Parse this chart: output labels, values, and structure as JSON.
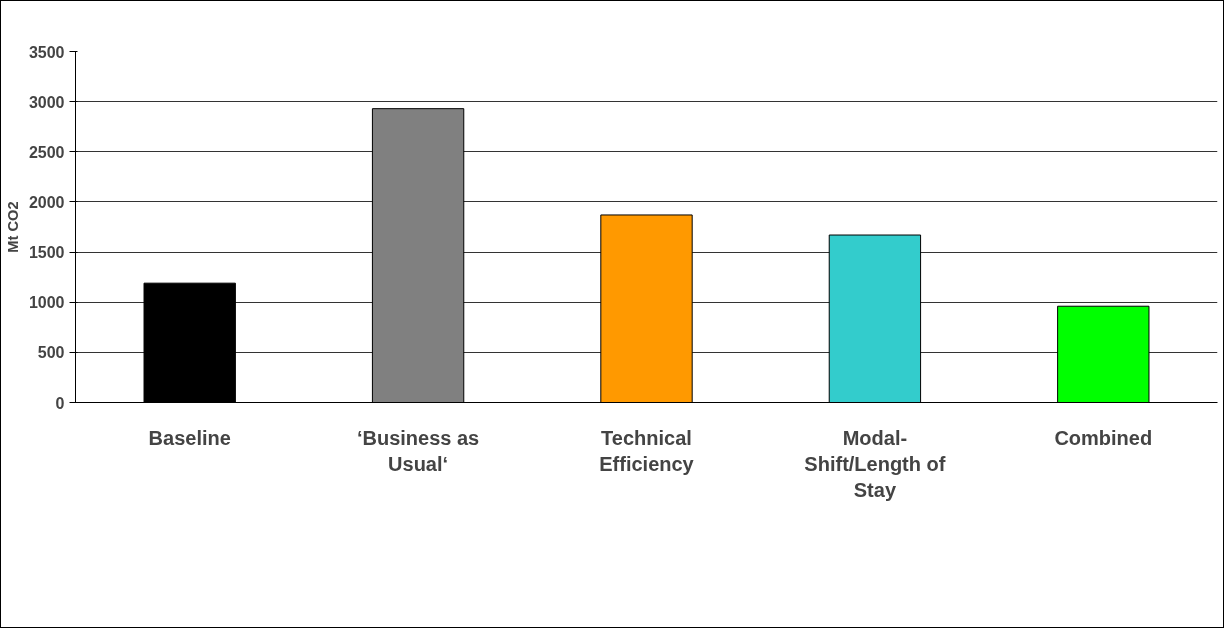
{
  "chart_data": {
    "type": "bar",
    "ylabel": "Mt CO2",
    "categories": [
      "Baseline",
      "‘Business as Usual‘",
      "Technical Efficiency",
      "Modal-Shift/Length of Stay",
      "Combined"
    ],
    "values": [
      1190,
      2930,
      1870,
      1670,
      960
    ],
    "colors": [
      "#000000",
      "#808080",
      "#ff9900",
      "#33cccc",
      "#00ff00"
    ],
    "ylim": [
      0,
      3500
    ],
    "yticks": [
      0,
      500,
      1000,
      1500,
      2000,
      2500,
      3000,
      3500
    ],
    "grid": "y"
  }
}
